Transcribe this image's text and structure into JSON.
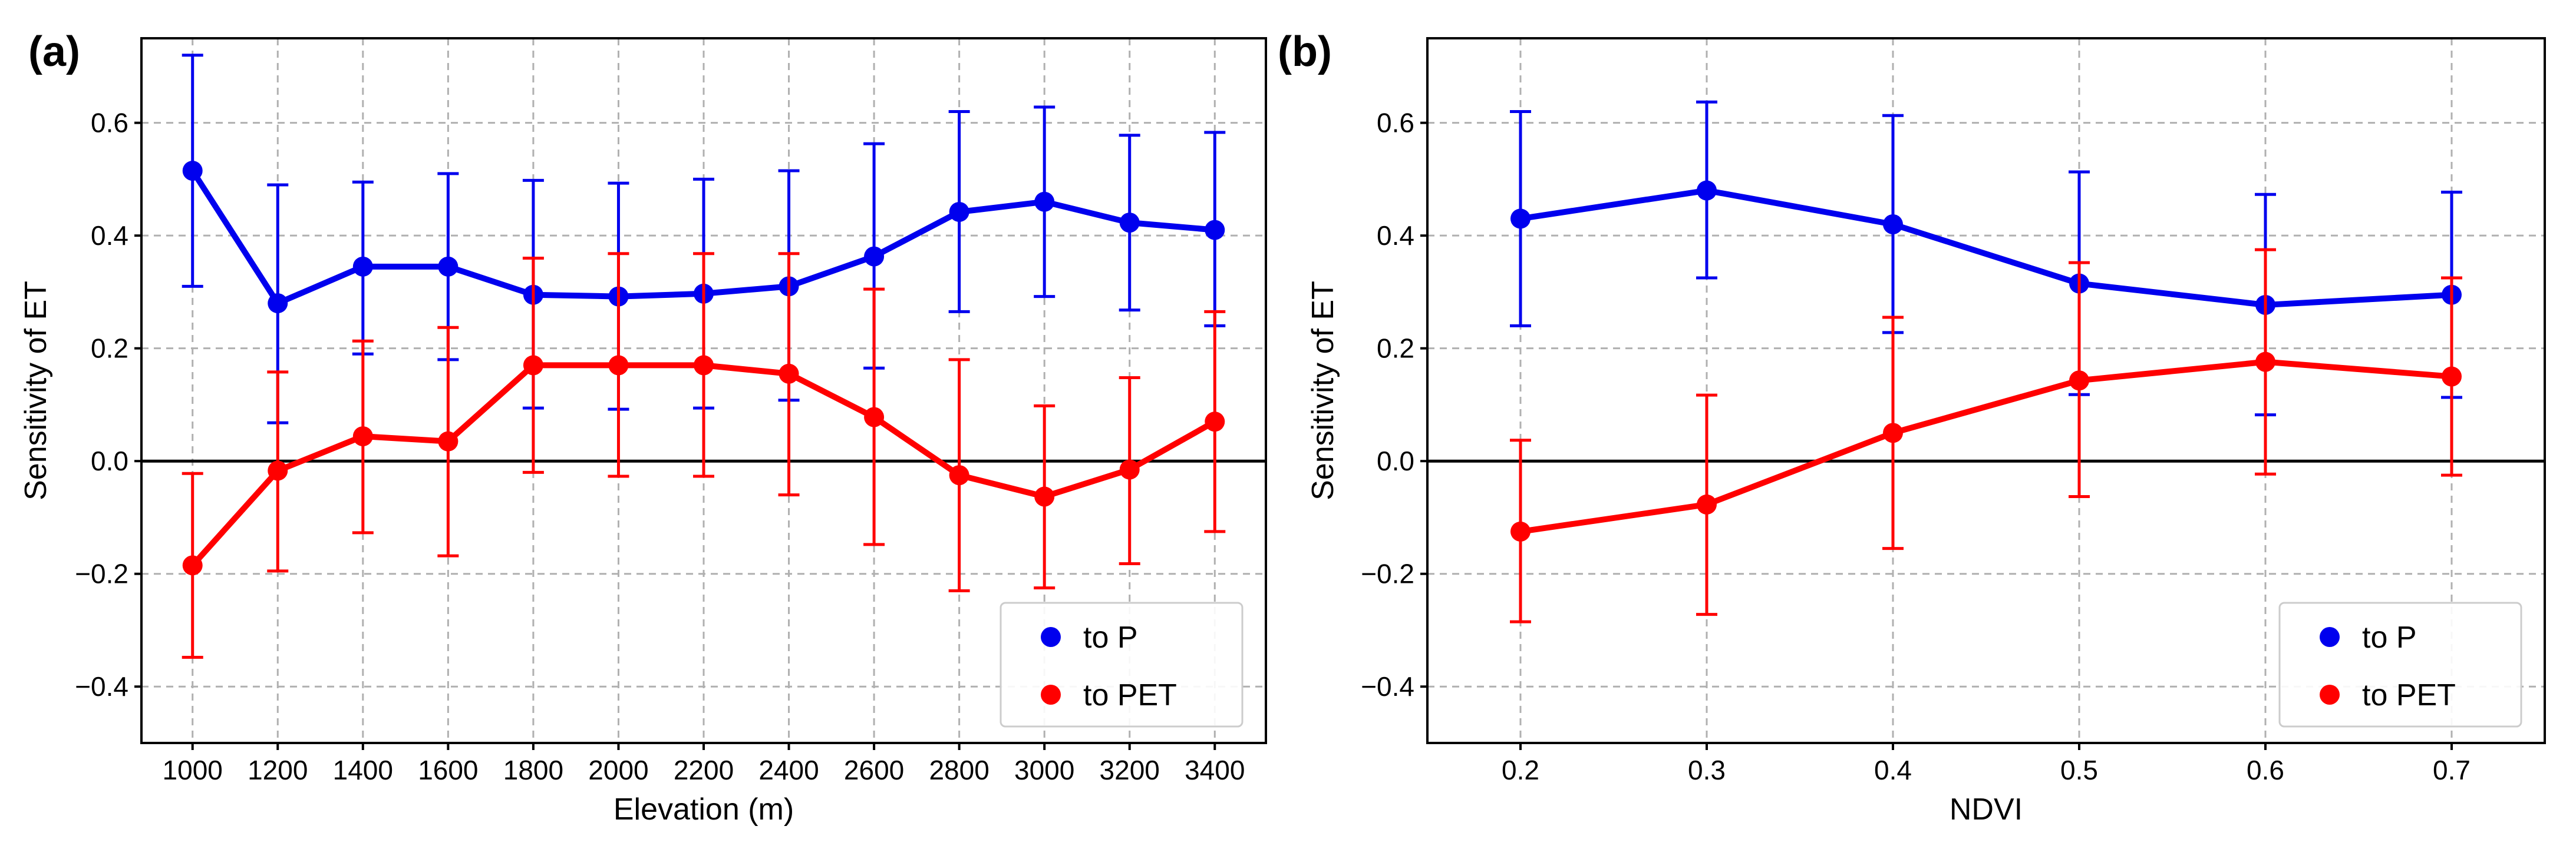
{
  "chart_data": [
    {
      "panel": "(a)",
      "type": "line",
      "xlabel": "Elevation (m)",
      "ylabel": "Sensitivity of ET",
      "categories": [
        "1000",
        "1200",
        "1400",
        "1600",
        "1800",
        "2000",
        "2200",
        "2400",
        "2600",
        "2800",
        "3000",
        "3200",
        "3400"
      ],
      "yticks": [
        "−0.4",
        "−0.2",
        "0.0",
        "0.2",
        "0.4",
        "0.6"
      ],
      "ylim": [
        -0.5,
        0.75
      ],
      "grid": true,
      "reference_line": 0,
      "legend_position": "bottom-right",
      "series": [
        {
          "name": "to  P",
          "color": "#0000ee",
          "values": [
            0.515,
            0.28,
            0.345,
            0.345,
            0.295,
            0.292,
            0.297,
            0.31,
            0.363,
            0.442,
            0.46,
            0.423,
            0.41
          ],
          "err_low": [
            0.31,
            0.068,
            0.19,
            0.18,
            0.094,
            0.092,
            0.094,
            0.108,
            0.165,
            0.265,
            0.292,
            0.268,
            0.24
          ],
          "err_high": [
            0.72,
            0.49,
            0.495,
            0.51,
            0.498,
            0.493,
            0.5,
            0.515,
            0.563,
            0.62,
            0.628,
            0.578,
            0.583
          ]
        },
        {
          "name": "to  PET",
          "color": "#ff0000",
          "values": [
            -0.185,
            -0.017,
            0.044,
            0.035,
            0.17,
            0.17,
            0.17,
            0.155,
            0.078,
            -0.025,
            -0.063,
            -0.015,
            0.07
          ],
          "err_low": [
            -0.348,
            -0.195,
            -0.127,
            -0.168,
            -0.02,
            -0.027,
            -0.027,
            -0.06,
            -0.148,
            -0.23,
            -0.225,
            -0.182,
            -0.125
          ],
          "err_high": [
            -0.022,
            0.158,
            0.213,
            0.237,
            0.36,
            0.368,
            0.368,
            0.368,
            0.305,
            0.18,
            0.098,
            0.148,
            0.265
          ]
        }
      ]
    },
    {
      "panel": "(b)",
      "type": "line",
      "xlabel": "NDVI",
      "ylabel": "Sensitivity of ET",
      "x": [
        0.2,
        0.3,
        0.4,
        0.5,
        0.6,
        0.7
      ],
      "xticks": [
        "0.2",
        "0.3",
        "0.4",
        "0.5",
        "0.6",
        "0.7"
      ],
      "xlim": [
        0.15,
        0.75
      ],
      "yticks": [
        "−0.4",
        "−0.2",
        "0.0",
        "0.2",
        "0.4",
        "0.6"
      ],
      "ylim": [
        -0.5,
        0.75
      ],
      "grid": true,
      "reference_line": 0,
      "legend_position": "bottom-right",
      "series": [
        {
          "name": "to  P",
          "color": "#0000ee",
          "values": [
            0.43,
            0.48,
            0.42,
            0.315,
            0.277,
            0.295
          ],
          "err_low": [
            0.24,
            0.325,
            0.228,
            0.118,
            0.082,
            0.113
          ],
          "err_high": [
            0.62,
            0.637,
            0.613,
            0.513,
            0.473,
            0.477
          ]
        },
        {
          "name": "to  PET",
          "color": "#ff0000",
          "values": [
            -0.125,
            -0.077,
            0.05,
            0.143,
            0.176,
            0.15
          ],
          "err_low": [
            -0.285,
            -0.272,
            -0.155,
            -0.063,
            -0.023,
            -0.025
          ],
          "err_high": [
            0.037,
            0.117,
            0.255,
            0.352,
            0.375,
            0.325
          ]
        }
      ]
    }
  ]
}
